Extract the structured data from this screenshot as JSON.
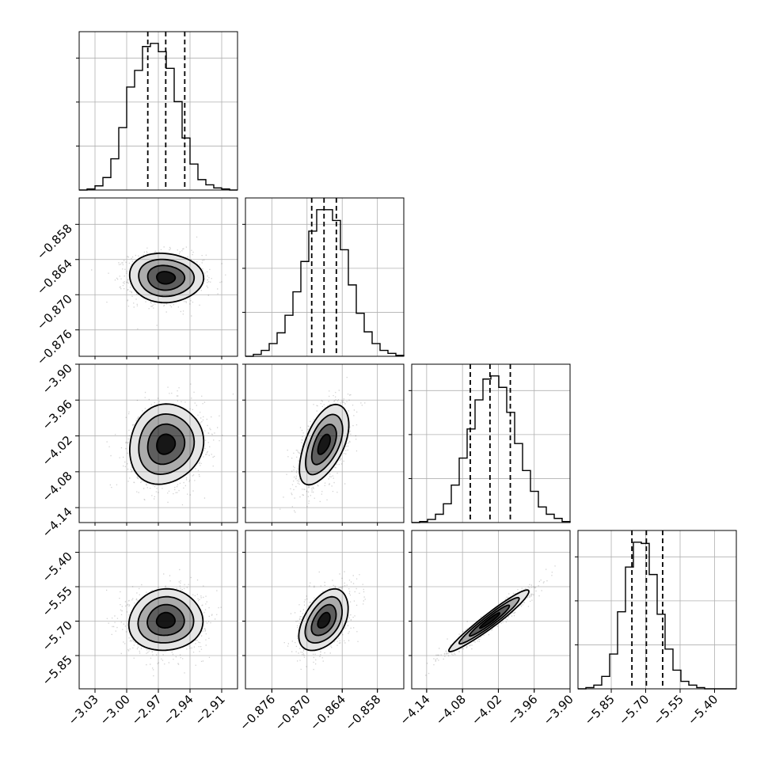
{
  "chart_data": {
    "type": "corner",
    "parameters": 4,
    "grid": true,
    "colors": {
      "line": "#000000",
      "grid": "#b0b0b0",
      "samples": "#000000"
    },
    "axes": [
      {
        "range": [
          -3.045,
          -2.895
        ],
        "ticks": [
          -3.03,
          -3.0,
          -2.97,
          -2.94,
          -2.91
        ],
        "tick_labels": [
          "−3.03",
          "−3.00",
          "−2.97",
          "−2.94",
          "−2.91"
        ]
      },
      {
        "range": [
          -0.8805,
          -0.8535
        ],
        "ticks": [
          -0.876,
          -0.87,
          -0.864,
          -0.858
        ],
        "tick_labels": [
          "−0.876",
          "−0.870",
          "−0.864",
          "−0.858"
        ]
      },
      {
        "range": [
          -4.165,
          -3.9
        ],
        "ticks": [
          -4.14,
          -4.08,
          -4.02,
          -3.96,
          -3.9
        ],
        "tick_labels": [
          "−4.14",
          "−4.08",
          "−4.02",
          "−3.96",
          "−3.90"
        ]
      },
      {
        "range": [
          -5.995,
          -5.305
        ],
        "ticks": [
          -5.85,
          -5.7,
          -5.55,
          -5.4
        ],
        "tick_labels": [
          "−5.85",
          "−5.70",
          "−5.55",
          "−5.40"
        ]
      }
    ],
    "quantiles": [
      [
        -2.98,
        -2.963,
        -2.945
      ],
      [
        -0.8692,
        -0.8671,
        -0.865
      ],
      [
        -4.067,
        -4.034,
        -4.0
      ],
      [
        -5.76,
        -5.697,
        -5.626
      ]
    ],
    "histograms": [
      {
        "bins": [
          -3.045,
          -2.895
        ],
        "counts": [
          0,
          1,
          4,
          12,
          30,
          60,
          99,
          115,
          138,
          141,
          133,
          117,
          85,
          50,
          25,
          10,
          5,
          2,
          1,
          0
        ]
      },
      {
        "bins": [
          -0.8805,
          -0.8535
        ],
        "counts": [
          0,
          2,
          6,
          13,
          24,
          42,
          66,
          97,
          128,
          150,
          150,
          139,
          109,
          73,
          44,
          25,
          13,
          6,
          3,
          1
        ]
      },
      {
        "bins": [
          -4.165,
          -3.9
        ],
        "counts": [
          0,
          1,
          3,
          8,
          18,
          36,
          62,
          90,
          118,
          138,
          141,
          130,
          106,
          76,
          50,
          30,
          15,
          8,
          4,
          1
        ]
      },
      {
        "bins": [
          -5.995,
          -5.305
        ],
        "counts": [
          0,
          1,
          3,
          10,
          28,
          62,
          98,
          118,
          117,
          92,
          60,
          32,
          15,
          6,
          3,
          1,
          0,
          0,
          0,
          0
        ]
      }
    ],
    "correlations": [
      {
        "x": 0,
        "y": 1,
        "rho": -0.05
      },
      {
        "x": 0,
        "y": 2,
        "rho": 0.1
      },
      {
        "x": 1,
        "y": 2,
        "rho": 0.55
      },
      {
        "x": 0,
        "y": 3,
        "rho": 0.05
      },
      {
        "x": 1,
        "y": 3,
        "rho": 0.45
      },
      {
        "x": 2,
        "y": 3,
        "rho": 0.96
      }
    ],
    "contour_levels_sigma": [
      0.5,
      1.0,
      1.5,
      2.0
    ]
  }
}
